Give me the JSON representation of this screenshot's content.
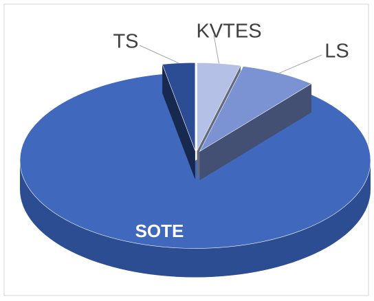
{
  "chart_data": {
    "type": "pie",
    "categories": [
      "KVTES",
      "LS",
      "SOTE",
      "TS"
    ],
    "values": [
      4,
      7,
      86,
      3
    ],
    "colors": [
      "#b4c0e6",
      "#7b93d3",
      "#4069bd",
      "#2c4c93"
    ]
  }
}
